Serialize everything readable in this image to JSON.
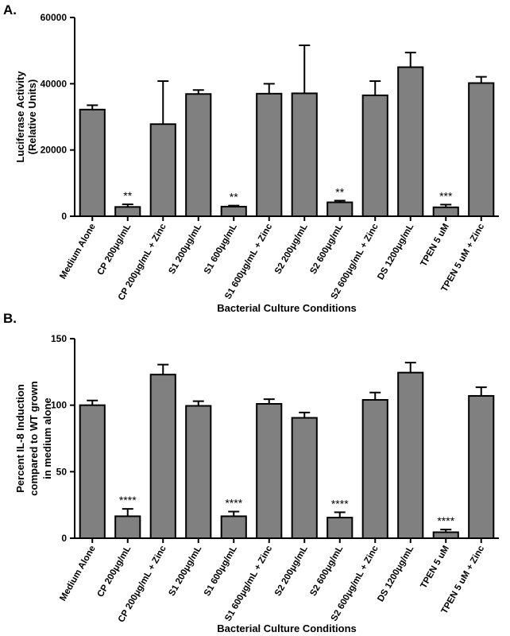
{
  "colors": {
    "bar_fill": "#808080",
    "axis": "#000000"
  },
  "chart_data": [
    {
      "type": "bar",
      "panel_label": "A.",
      "ylabel": [
        "Luciferase Activity",
        "(Relative Units)"
      ],
      "xlabel": "Bacterial Culture Conditions",
      "ylim": [
        0,
        60000
      ],
      "yticks": [
        "0",
        "20000",
        "40000",
        "60000"
      ],
      "ytick_values": [
        0,
        20000,
        40000,
        60000
      ],
      "grid": false,
      "categories": [
        "Medium Alone",
        "CP 200μg/mL",
        "CP 200μg/mL + Zinc",
        "S1 200μg/mL",
        "S1 600μg/mL",
        "S1 600μg/mL + Zinc",
        "S2 200μg/mL",
        "S2 600μg/mL",
        "S2 600μg/mL + Zinc",
        "DS 1200μg/mL",
        "TPEN 5 uM",
        "TPEN 5 uM + Zinc"
      ],
      "values": [
        32200,
        2800,
        27800,
        36900,
        2900,
        37000,
        37100,
        4200,
        36500,
        45000,
        2700,
        40200
      ],
      "errors": [
        1300,
        800,
        13000,
        1200,
        300,
        3000,
        14500,
        500,
        4300,
        4400,
        800,
        1900
      ],
      "significance": [
        "",
        "**",
        "",
        "",
        "**",
        "",
        "",
        "**",
        "",
        "",
        "***",
        ""
      ]
    },
    {
      "type": "bar",
      "panel_label": "B.",
      "ylabel": [
        "Percent IL-8 Induction",
        "compared to WT grown",
        "in medium alone"
      ],
      "xlabel": "Bacterial Culture Conditions",
      "ylim": [
        0,
        150
      ],
      "yticks": [
        "0",
        "50",
        "100",
        "150"
      ],
      "ytick_values": [
        0,
        50,
        100,
        150
      ],
      "grid": false,
      "categories": [
        "Medium Alone",
        "CP 200μg/mL",
        "CP 200μg/mL + Zinc",
        "S1 200μg/mL",
        "S1 600μg/mL",
        "S1 600μg/mL + Zinc",
        "S2 200μg/mL",
        "S2 600μg/mL",
        "S2 600μg/mL + Zinc",
        "DS 1200μg/mL",
        "TPEN 5 uM",
        "TPEN 5 uM + Zinc"
      ],
      "values": [
        100,
        16.5,
        123,
        99.5,
        16.5,
        101,
        90.5,
        15.5,
        104,
        124.5,
        4.5,
        107
      ],
      "errors": [
        3.5,
        5.5,
        7.5,
        3.5,
        3.5,
        3.5,
        4,
        4,
        5.5,
        7.5,
        2,
        6.5
      ],
      "significance": [
        "",
        "****",
        "",
        "",
        "****",
        "",
        "",
        "****",
        "",
        "",
        "****",
        ""
      ]
    }
  ]
}
